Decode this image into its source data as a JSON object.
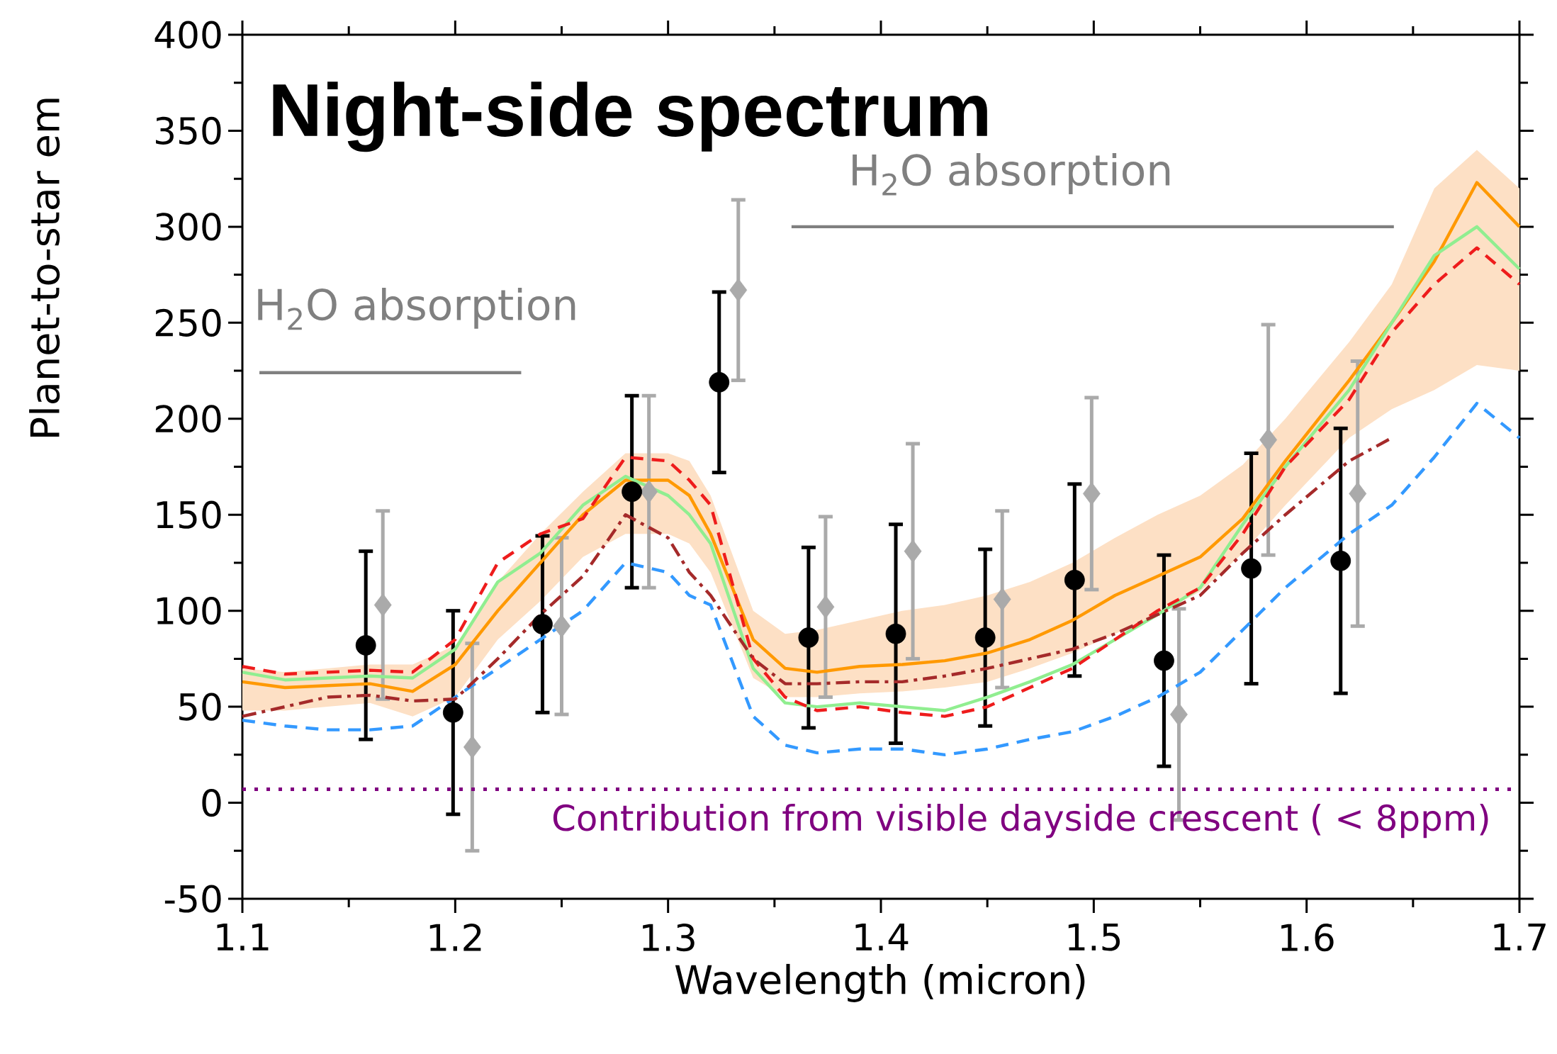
{
  "chart_data": {
    "type": "line",
    "title": "Night-side spectrum",
    "xlabel": "Wavelength (micron)",
    "ylabel": "Planet-to-star em",
    "xlim": [
      1.1,
      1.7
    ],
    "ylim": [
      -50,
      400
    ],
    "xticks": [
      1.1,
      1.2,
      1.3,
      1.4,
      1.5,
      1.6,
      1.7
    ],
    "yticks": [
      -50,
      0,
      50,
      100,
      150,
      200,
      250,
      300,
      350,
      400
    ],
    "x": [
      1.1,
      1.12,
      1.14,
      1.16,
      1.18,
      1.2,
      1.22,
      1.24,
      1.26,
      1.28,
      1.3,
      1.31,
      1.32,
      1.34,
      1.355,
      1.37,
      1.39,
      1.41,
      1.43,
      1.45,
      1.47,
      1.49,
      1.51,
      1.53,
      1.55,
      1.57,
      1.59,
      1.62,
      1.64,
      1.66,
      1.68,
      1.7
    ],
    "series": [
      {
        "color": "#ff9900",
        "line_style": "solid",
        "values": [
          63,
          60,
          61,
          62,
          58,
          72,
          100,
          125,
          150,
          168,
          168,
          160,
          140,
          85,
          70,
          68,
          71,
          72,
          74,
          78,
          85,
          95,
          108,
          118,
          128,
          148,
          178,
          220,
          250,
          282,
          323,
          300
        ],
        "lower": [
          48,
          48,
          50,
          52,
          45,
          55,
          85,
          105,
          128,
          140,
          140,
          135,
          120,
          65,
          55,
          55,
          57,
          58,
          60,
          63,
          70,
          78,
          88,
          98,
          110,
          130,
          155,
          190,
          205,
          215,
          228,
          225
        ],
        "upper": [
          70,
          68,
          70,
          72,
          72,
          82,
          115,
          140,
          162,
          182,
          182,
          178,
          160,
          100,
          88,
          90,
          95,
          100,
          103,
          108,
          115,
          125,
          138,
          150,
          160,
          176,
          200,
          240,
          270,
          320,
          340,
          320
        ]
      },
      {
        "color": "#90ee90",
        "line_style": "solid",
        "values": [
          68,
          64,
          65,
          66,
          65,
          80,
          115,
          130,
          155,
          170,
          160,
          150,
          135,
          70,
          52,
          50,
          52,
          50,
          48,
          55,
          63,
          72,
          85,
          98,
          112,
          145,
          175,
          215,
          250,
          285,
          300,
          278
        ]
      },
      {
        "color": "#ee1c1c",
        "line_style": "dashed",
        "values": [
          71,
          67,
          68,
          69,
          68,
          85,
          125,
          140,
          148,
          180,
          178,
          168,
          155,
          75,
          55,
          48,
          50,
          47,
          45,
          50,
          60,
          70,
          85,
          100,
          112,
          140,
          175,
          210,
          245,
          270,
          289,
          270
        ]
      },
      {
        "color": "#3399ff",
        "line_style": "dashed",
        "values": [
          43,
          40,
          38,
          38,
          40,
          null,
          70,
          null,
          100,
          125,
          120,
          108,
          103,
          45,
          30,
          26,
          28,
          28,
          25,
          28,
          33,
          37,
          45,
          55,
          68,
          90,
          112,
          140,
          155,
          180,
          208,
          190
        ]
      },
      {
        "color": "#a52a2a",
        "line_style": "dashdot",
        "values": [
          45,
          50,
          55,
          56,
          53,
          54,
          75,
          98,
          118,
          150,
          138,
          120,
          108,
          75,
          62,
          62,
          63,
          63,
          66,
          70,
          75,
          80,
          88,
          98,
          108,
          130,
          150,
          178,
          190,
          null,
          null,
          null
        ]
      },
      {
        "color": "#808080",
        "line_style": "solid",
        "x": [
          1.108,
          1.231
        ],
        "values": [
          224,
          224
        ]
      },
      {
        "color": "#808080",
        "line_style": "solid",
        "x": [
          1.358,
          1.641
        ],
        "values": [
          300,
          300
        ]
      },
      {
        "type": "scatter",
        "color": "#aaaaaa",
        "marker": "diamond",
        "x": [
          1.166,
          1.208,
          1.25,
          1.291,
          1.333,
          1.374,
          1.415,
          1.457,
          1.499,
          1.54,
          1.582,
          1.624
        ],
        "values": [
          103,
          29,
          92,
          162,
          267,
          102,
          131,
          106,
          161,
          46,
          189,
          161
        ],
        "errors": [
          49,
          54,
          46,
          50,
          47,
          47,
          56,
          46,
          50,
          55,
          60,
          69
        ]
      },
      {
        "type": "scatter",
        "color": "#000000",
        "marker": "circle",
        "x": [
          1.158,
          1.199,
          1.241,
          1.283,
          1.324,
          1.366,
          1.407,
          1.449,
          1.491,
          1.533,
          1.574,
          1.616
        ],
        "values": [
          82,
          47,
          93,
          162,
          219,
          86,
          88,
          86,
          116,
          74,
          122,
          126
        ],
        "errors": [
          49,
          53,
          46,
          50,
          47,
          47,
          57,
          46,
          50,
          55,
          60,
          69
        ]
      }
    ],
    "ref_lines": [
      {
        "axis": "y",
        "value": 7,
        "label": "Contribution from visible dayside crescent ( < 8ppm)",
        "color": "#800080",
        "line_style": "dotted"
      }
    ],
    "annotations": [
      "H$_{2}$O absorption",
      "H$_{2}$O absorption"
    ]
  }
}
